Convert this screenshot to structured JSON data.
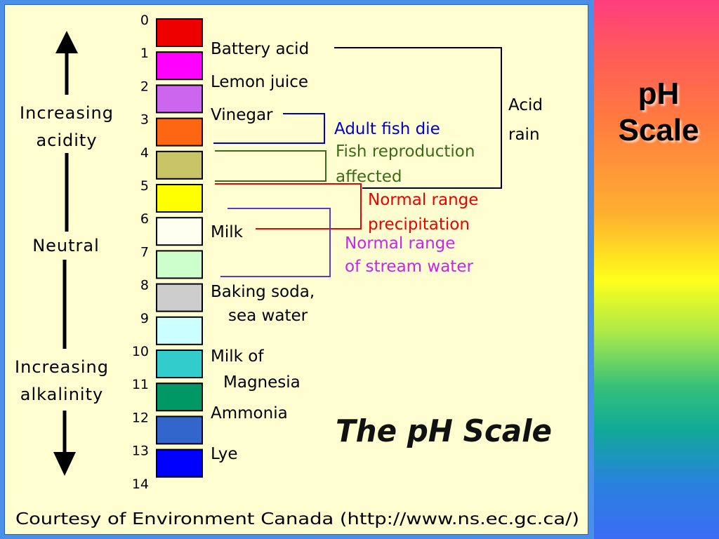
{
  "slide_title": [
    "pH",
    "Scale"
  ],
  "figure": {
    "title": "The pH Scale",
    "credit": "Courtesy of Environment Canada (http://www.ns.ec.gc.ca/)",
    "arrow_labels": {
      "acidity": [
        "Increasing",
        "acidity"
      ],
      "neutral": "Neutral",
      "alkalinity": [
        "Increasing",
        "alkalinity"
      ]
    },
    "scale": [
      {
        "ph": "0",
        "color": "#ee0000"
      },
      {
        "ph": "1",
        "color": "#ff00ff"
      },
      {
        "ph": "2",
        "color": "#cc66ee"
      },
      {
        "ph": "3",
        "color": "#ff6611"
      },
      {
        "ph": "4",
        "color": "#c8c466"
      },
      {
        "ph": "5",
        "color": "#ffff00"
      },
      {
        "ph": "6",
        "color": "#fffff0"
      },
      {
        "ph": "7",
        "color": "#ccffcc"
      },
      {
        "ph": "8",
        "color": "#cccccc"
      },
      {
        "ph": "9",
        "color": "#ccffff"
      },
      {
        "ph": "10",
        "color": "#33cccc"
      },
      {
        "ph": "11",
        "color": "#009966"
      },
      {
        "ph": "12",
        "color": "#3366cc"
      },
      {
        "ph": "13",
        "color": "#0000ff"
      },
      {
        "ph": "14",
        "color": ""
      }
    ],
    "substances": [
      {
        "lines": [
          "Battery acid"
        ]
      },
      {
        "lines": [
          "Lemon juice"
        ]
      },
      {
        "lines": [
          "Vinegar"
        ]
      },
      {
        "lines": [
          "Milk"
        ]
      },
      {
        "lines": [
          "Baking soda,",
          "sea water"
        ]
      },
      {
        "lines": [
          "Milk of",
          "Magnesia"
        ]
      },
      {
        "lines": [
          "Ammonia"
        ]
      },
      {
        "lines": [
          "Lye"
        ]
      }
    ],
    "ranges": [
      {
        "id": "acid-rain",
        "lines": [
          "Acid",
          "rain"
        ],
        "color": "#000000"
      },
      {
        "id": "adult-fish-die",
        "lines": [
          "Adult fish die"
        ],
        "color": "#0000cc"
      },
      {
        "id": "fish-reproduction",
        "lines": [
          "Fish reproduction",
          "affected"
        ],
        "color": "#3a6b1a"
      },
      {
        "id": "normal-precipitation",
        "lines": [
          "Normal range",
          "precipitation"
        ],
        "color": "#ee0000"
      },
      {
        "id": "normal-stream",
        "lines": [
          "Normal range",
          "of stream water"
        ],
        "color": "#cc22ee"
      }
    ]
  }
}
